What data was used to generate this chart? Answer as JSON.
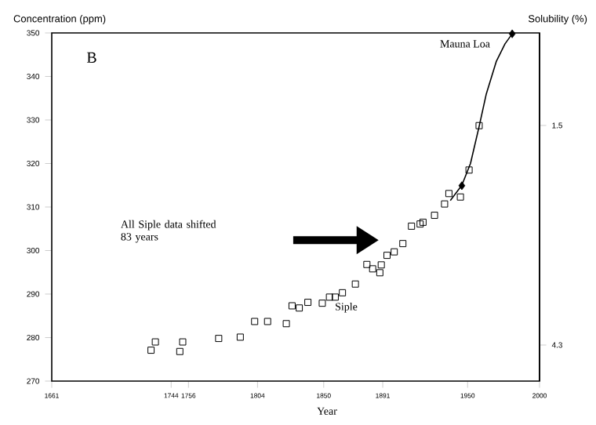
{
  "chart_data": {
    "type": "scatter",
    "title": "B",
    "xlabel": "Year",
    "ylabel": "Concentration (ppm)",
    "y2label": "Solubility (%)",
    "xlim": [
      1661,
      2000
    ],
    "xticks": [
      1661,
      1744,
      1756,
      1804,
      1850,
      1891,
      1950,
      2000
    ],
    "ylim": [
      270,
      350
    ],
    "yticks": [
      270,
      280,
      290,
      300,
      310,
      320,
      330,
      340,
      350
    ],
    "y2lim": [
      4.76,
      0.32
    ],
    "y2ticks": [
      1.5,
      4.3
    ],
    "annotations": [
      "All Siple data shifted 83 years"
    ],
    "series": [
      {
        "name": "Siple",
        "marker": "square",
        "color": "#000000",
        "x": [
          1730,
          1733,
          1750,
          1752,
          1777,
          1792,
          1802,
          1811,
          1824,
          1828,
          1833,
          1839,
          1849,
          1854,
          1858,
          1863,
          1872,
          1880,
          1884,
          1889,
          1890,
          1894,
          1899,
          1905,
          1911,
          1917,
          1919,
          1927,
          1934,
          1937,
          1945,
          1951,
          1958
        ],
        "values": [
          277.1,
          279,
          276.8,
          279,
          279.8,
          280.1,
          283.7,
          283.7,
          283.2,
          287.3,
          286.8,
          288.1,
          287.9,
          289.3,
          289.3,
          290.3,
          292.3,
          296.8,
          295.8,
          294.9,
          296.7,
          298.9,
          299.7,
          301.6,
          305.6,
          306.1,
          306.5,
          308.1,
          310.7,
          313.1,
          312.3,
          318.5,
          328.7
        ]
      },
      {
        "name": "Mauna Loa",
        "type": "line",
        "marker": "none",
        "color": "#000000",
        "x": [
          1938,
          1946,
          1952,
          1958,
          1963,
          1970,
          1976,
          1981
        ],
        "values": [
          311.5,
          315,
          320,
          328.5,
          336,
          343.5,
          347.5,
          349.8
        ]
      },
      {
        "marker": "diamond",
        "color": "#000000",
        "x": [
          1946,
          1981
        ],
        "values": [
          314.9,
          349.8
        ]
      }
    ]
  }
}
